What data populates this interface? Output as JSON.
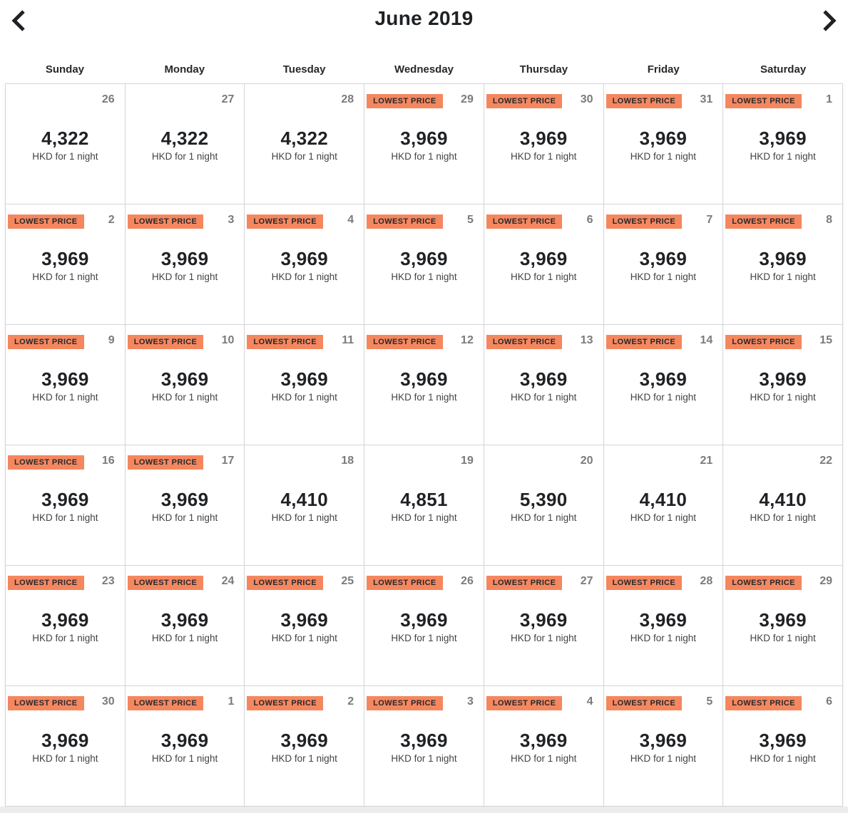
{
  "header": {
    "title": "June 2019",
    "prev_icon": "chevron-left",
    "next_icon": "chevron-right"
  },
  "calendar": {
    "weekdays": [
      "Sunday",
      "Monday",
      "Tuesday",
      "Wednesday",
      "Thursday",
      "Friday",
      "Saturday"
    ],
    "badge_label": "LOWEST PRICE",
    "price_unit": "HKD for 1 night",
    "currency": "HKD",
    "weeks": [
      [
        {
          "day": "26",
          "price": "4,322",
          "lowest": false
        },
        {
          "day": "27",
          "price": "4,322",
          "lowest": false
        },
        {
          "day": "28",
          "price": "4,322",
          "lowest": false
        },
        {
          "day": "29",
          "price": "3,969",
          "lowest": true
        },
        {
          "day": "30",
          "price": "3,969",
          "lowest": true
        },
        {
          "day": "31",
          "price": "3,969",
          "lowest": true
        },
        {
          "day": "1",
          "price": "3,969",
          "lowest": true
        }
      ],
      [
        {
          "day": "2",
          "price": "3,969",
          "lowest": true
        },
        {
          "day": "3",
          "price": "3,969",
          "lowest": true
        },
        {
          "day": "4",
          "price": "3,969",
          "lowest": true
        },
        {
          "day": "5",
          "price": "3,969",
          "lowest": true
        },
        {
          "day": "6",
          "price": "3,969",
          "lowest": true
        },
        {
          "day": "7",
          "price": "3,969",
          "lowest": true
        },
        {
          "day": "8",
          "price": "3,969",
          "lowest": true
        }
      ],
      [
        {
          "day": "9",
          "price": "3,969",
          "lowest": true
        },
        {
          "day": "10",
          "price": "3,969",
          "lowest": true
        },
        {
          "day": "11",
          "price": "3,969",
          "lowest": true
        },
        {
          "day": "12",
          "price": "3,969",
          "lowest": true
        },
        {
          "day": "13",
          "price": "3,969",
          "lowest": true
        },
        {
          "day": "14",
          "price": "3,969",
          "lowest": true
        },
        {
          "day": "15",
          "price": "3,969",
          "lowest": true
        }
      ],
      [
        {
          "day": "16",
          "price": "3,969",
          "lowest": true
        },
        {
          "day": "17",
          "price": "3,969",
          "lowest": true
        },
        {
          "day": "18",
          "price": "4,410",
          "lowest": false
        },
        {
          "day": "19",
          "price": "4,851",
          "lowest": false
        },
        {
          "day": "20",
          "price": "5,390",
          "lowest": false
        },
        {
          "day": "21",
          "price": "4,410",
          "lowest": false
        },
        {
          "day": "22",
          "price": "4,410",
          "lowest": false
        }
      ],
      [
        {
          "day": "23",
          "price": "3,969",
          "lowest": true
        },
        {
          "day": "24",
          "price": "3,969",
          "lowest": true
        },
        {
          "day": "25",
          "price": "3,969",
          "lowest": true
        },
        {
          "day": "26",
          "price": "3,969",
          "lowest": true
        },
        {
          "day": "27",
          "price": "3,969",
          "lowest": true
        },
        {
          "day": "28",
          "price": "3,969",
          "lowest": true
        },
        {
          "day": "29",
          "price": "3,969",
          "lowest": true
        }
      ],
      [
        {
          "day": "30",
          "price": "3,969",
          "lowest": true
        },
        {
          "day": "1",
          "price": "3,969",
          "lowest": true
        },
        {
          "day": "2",
          "price": "3,969",
          "lowest": true
        },
        {
          "day": "3",
          "price": "3,969",
          "lowest": true
        },
        {
          "day": "4",
          "price": "3,969",
          "lowest": true
        },
        {
          "day": "5",
          "price": "3,969",
          "lowest": true
        },
        {
          "day": "6",
          "price": "3,969",
          "lowest": true
        }
      ]
    ]
  },
  "colors": {
    "badge_bg": "#f5875f",
    "badge_text": "#26282b",
    "day_number": "#7a7b7e",
    "price_text": "#1f2124",
    "grid_border": "#d4d5d7"
  }
}
